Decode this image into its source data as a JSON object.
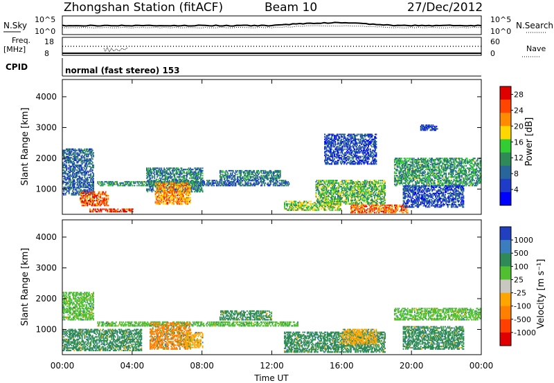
{
  "header": {
    "station": "Zhongshan Station (fitACF)",
    "beam": "Beam 10",
    "date": "27/Dec/2012"
  },
  "top_panels": {
    "nsky_label": "N.Sky",
    "nsky_ticks": [
      "10^5",
      "10^0"
    ],
    "nsearch_label": "N.Search",
    "nsearch_ticks": [
      "10^5",
      "10^0"
    ],
    "freq_label": "Freq.",
    "freq_unit": "[MHz]",
    "freq_ticks": [
      "18",
      "8"
    ],
    "nave_label": "Nave",
    "nave_ticks": [
      "60",
      "0"
    ],
    "cpid_label": "CPID",
    "cpid_text": "normal (fast stereo) 153"
  },
  "chart_data": [
    {
      "type": "heatmap",
      "title": "",
      "ylabel": "Slant Range [km]",
      "xlabel": "",
      "x_range_hours": [
        0,
        24
      ],
      "ylim": [
        180,
        4560
      ],
      "yticks": [
        1000,
        2000,
        3000,
        4000
      ],
      "colorbar": {
        "label": "Power [dB]",
        "ticks": [
          "4",
          "8",
          "12",
          "16",
          "20",
          "24",
          "28"
        ],
        "range": [
          0,
          30
        ],
        "colors": [
          "#0000ff",
          "#1e3cc8",
          "#28659a",
          "#2e8b57",
          "#32cd32",
          "#ffd700",
          "#ff8c00",
          "#ff4500",
          "#e00000"
        ]
      },
      "regions": [
        {
          "t0": 0.0,
          "t1": 1.8,
          "r0": 800,
          "r1": 2300,
          "level": 8
        },
        {
          "t0": 1.0,
          "t1": 2.6,
          "r0": 450,
          "r1": 900,
          "level": 24
        },
        {
          "t0": 1.5,
          "t1": 4.0,
          "r0": 250,
          "r1": 350,
          "level": 26
        },
        {
          "t0": 2.0,
          "t1": 8.0,
          "r0": 1100,
          "r1": 1250,
          "level": 12
        },
        {
          "t0": 4.8,
          "t1": 8.0,
          "r0": 900,
          "r1": 1700,
          "level": 10
        },
        {
          "t0": 5.3,
          "t1": 7.3,
          "r0": 500,
          "r1": 1200,
          "level": 22
        },
        {
          "t0": 8.0,
          "t1": 13.0,
          "r0": 1100,
          "r1": 1300,
          "level": 8
        },
        {
          "t0": 9.0,
          "t1": 12.5,
          "r0": 1300,
          "r1": 1600,
          "level": 10
        },
        {
          "t0": 12.7,
          "t1": 16.0,
          "r0": 300,
          "r1": 600,
          "level": 16
        },
        {
          "t0": 14.5,
          "t1": 18.5,
          "r0": 500,
          "r1": 1300,
          "level": 14
        },
        {
          "t0": 15.0,
          "t1": 18.0,
          "r0": 1800,
          "r1": 2800,
          "level": 6
        },
        {
          "t0": 16.5,
          "t1": 19.8,
          "r0": 220,
          "r1": 500,
          "level": 24
        },
        {
          "t0": 19.0,
          "t1": 24.0,
          "r0": 1100,
          "r1": 2000,
          "level": 12
        },
        {
          "t0": 19.5,
          "t1": 23.0,
          "r0": 400,
          "r1": 1100,
          "level": 6
        },
        {
          "t0": 20.5,
          "t1": 21.5,
          "r0": 2900,
          "r1": 3100,
          "level": 6
        }
      ]
    },
    {
      "type": "heatmap",
      "title": "",
      "ylabel": "Slant Range [km]",
      "xlabel": "Time UT",
      "x_range_hours": [
        0,
        24
      ],
      "xticks": [
        "00:00",
        "04:00",
        "08:00",
        "12:00",
        "16:00",
        "20:00",
        "00:00"
      ],
      "ylim": [
        180,
        4560
      ],
      "yticks": [
        1000,
        2000,
        3000,
        4000
      ],
      "colorbar": {
        "label": "Velocity [m s⁻¹]",
        "ticks": [
          "1000",
          "500",
          "100",
          "25",
          "-25",
          "-100",
          "-500",
          "-1000"
        ],
        "colors": [
          "#2040c0",
          "#3b7dbf",
          "#2e8b57",
          "#50c030",
          "#c8c8c0",
          "#ffa500",
          "#ff7f00",
          "#ff4000",
          "#e00000"
        ]
      },
      "regions": [
        {
          "t0": 0.0,
          "t1": 1.8,
          "r0": 1300,
          "r1": 2200,
          "level": 25
        },
        {
          "t0": 0.0,
          "t1": 4.5,
          "r0": 300,
          "r1": 1000,
          "level": 100
        },
        {
          "t0": 2.0,
          "t1": 13.5,
          "r0": 1100,
          "r1": 1250,
          "level": 25
        },
        {
          "t0": 5.0,
          "t1": 7.3,
          "r0": 350,
          "r1": 1200,
          "level": -500
        },
        {
          "t0": 7.0,
          "t1": 8.0,
          "r0": 400,
          "r1": 900,
          "level": -100
        },
        {
          "t0": 9.0,
          "t1": 12.0,
          "r0": 1300,
          "r1": 1600,
          "level": 100
        },
        {
          "t0": 12.7,
          "t1": 18.5,
          "r0": 250,
          "r1": 900,
          "level": 100
        },
        {
          "t0": 16.0,
          "t1": 18.0,
          "r0": 500,
          "r1": 1000,
          "level": -100
        },
        {
          "t0": 19.0,
          "t1": 24.0,
          "r0": 1300,
          "r1": 1700,
          "level": 25
        },
        {
          "t0": 19.5,
          "t1": 23.0,
          "r0": 350,
          "r1": 1100,
          "level": 100
        }
      ]
    }
  ]
}
